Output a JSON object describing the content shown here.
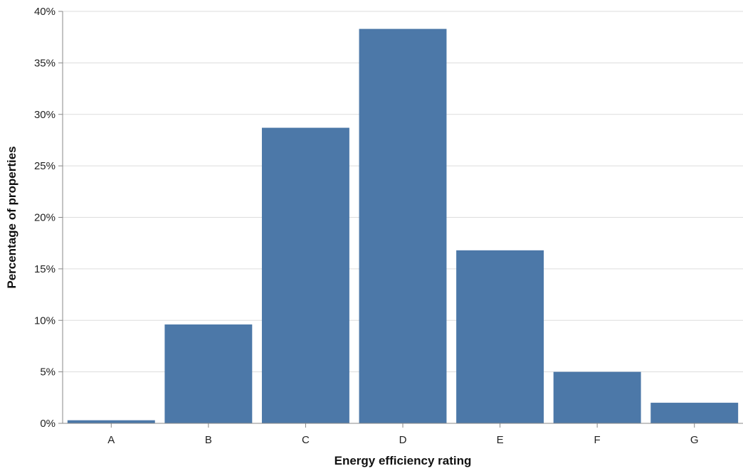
{
  "chart_data": {
    "type": "bar",
    "title": "",
    "xlabel": "Energy efficiency rating",
    "ylabel": "Percentage of properties",
    "categories": [
      "A",
      "B",
      "C",
      "D",
      "E",
      "F",
      "G"
    ],
    "values": [
      0.3,
      9.6,
      28.7,
      38.3,
      16.8,
      5.0,
      2.0
    ],
    "y_ticks": [
      0,
      5,
      10,
      15,
      20,
      25,
      30,
      35,
      40
    ],
    "y_tick_labels": [
      "0%",
      "5%",
      "10%",
      "15%",
      "20%",
      "25%",
      "30%",
      "35%",
      "40%"
    ],
    "ylim": [
      0,
      40
    ],
    "grid": true,
    "bar_color": "#4c78a8"
  }
}
